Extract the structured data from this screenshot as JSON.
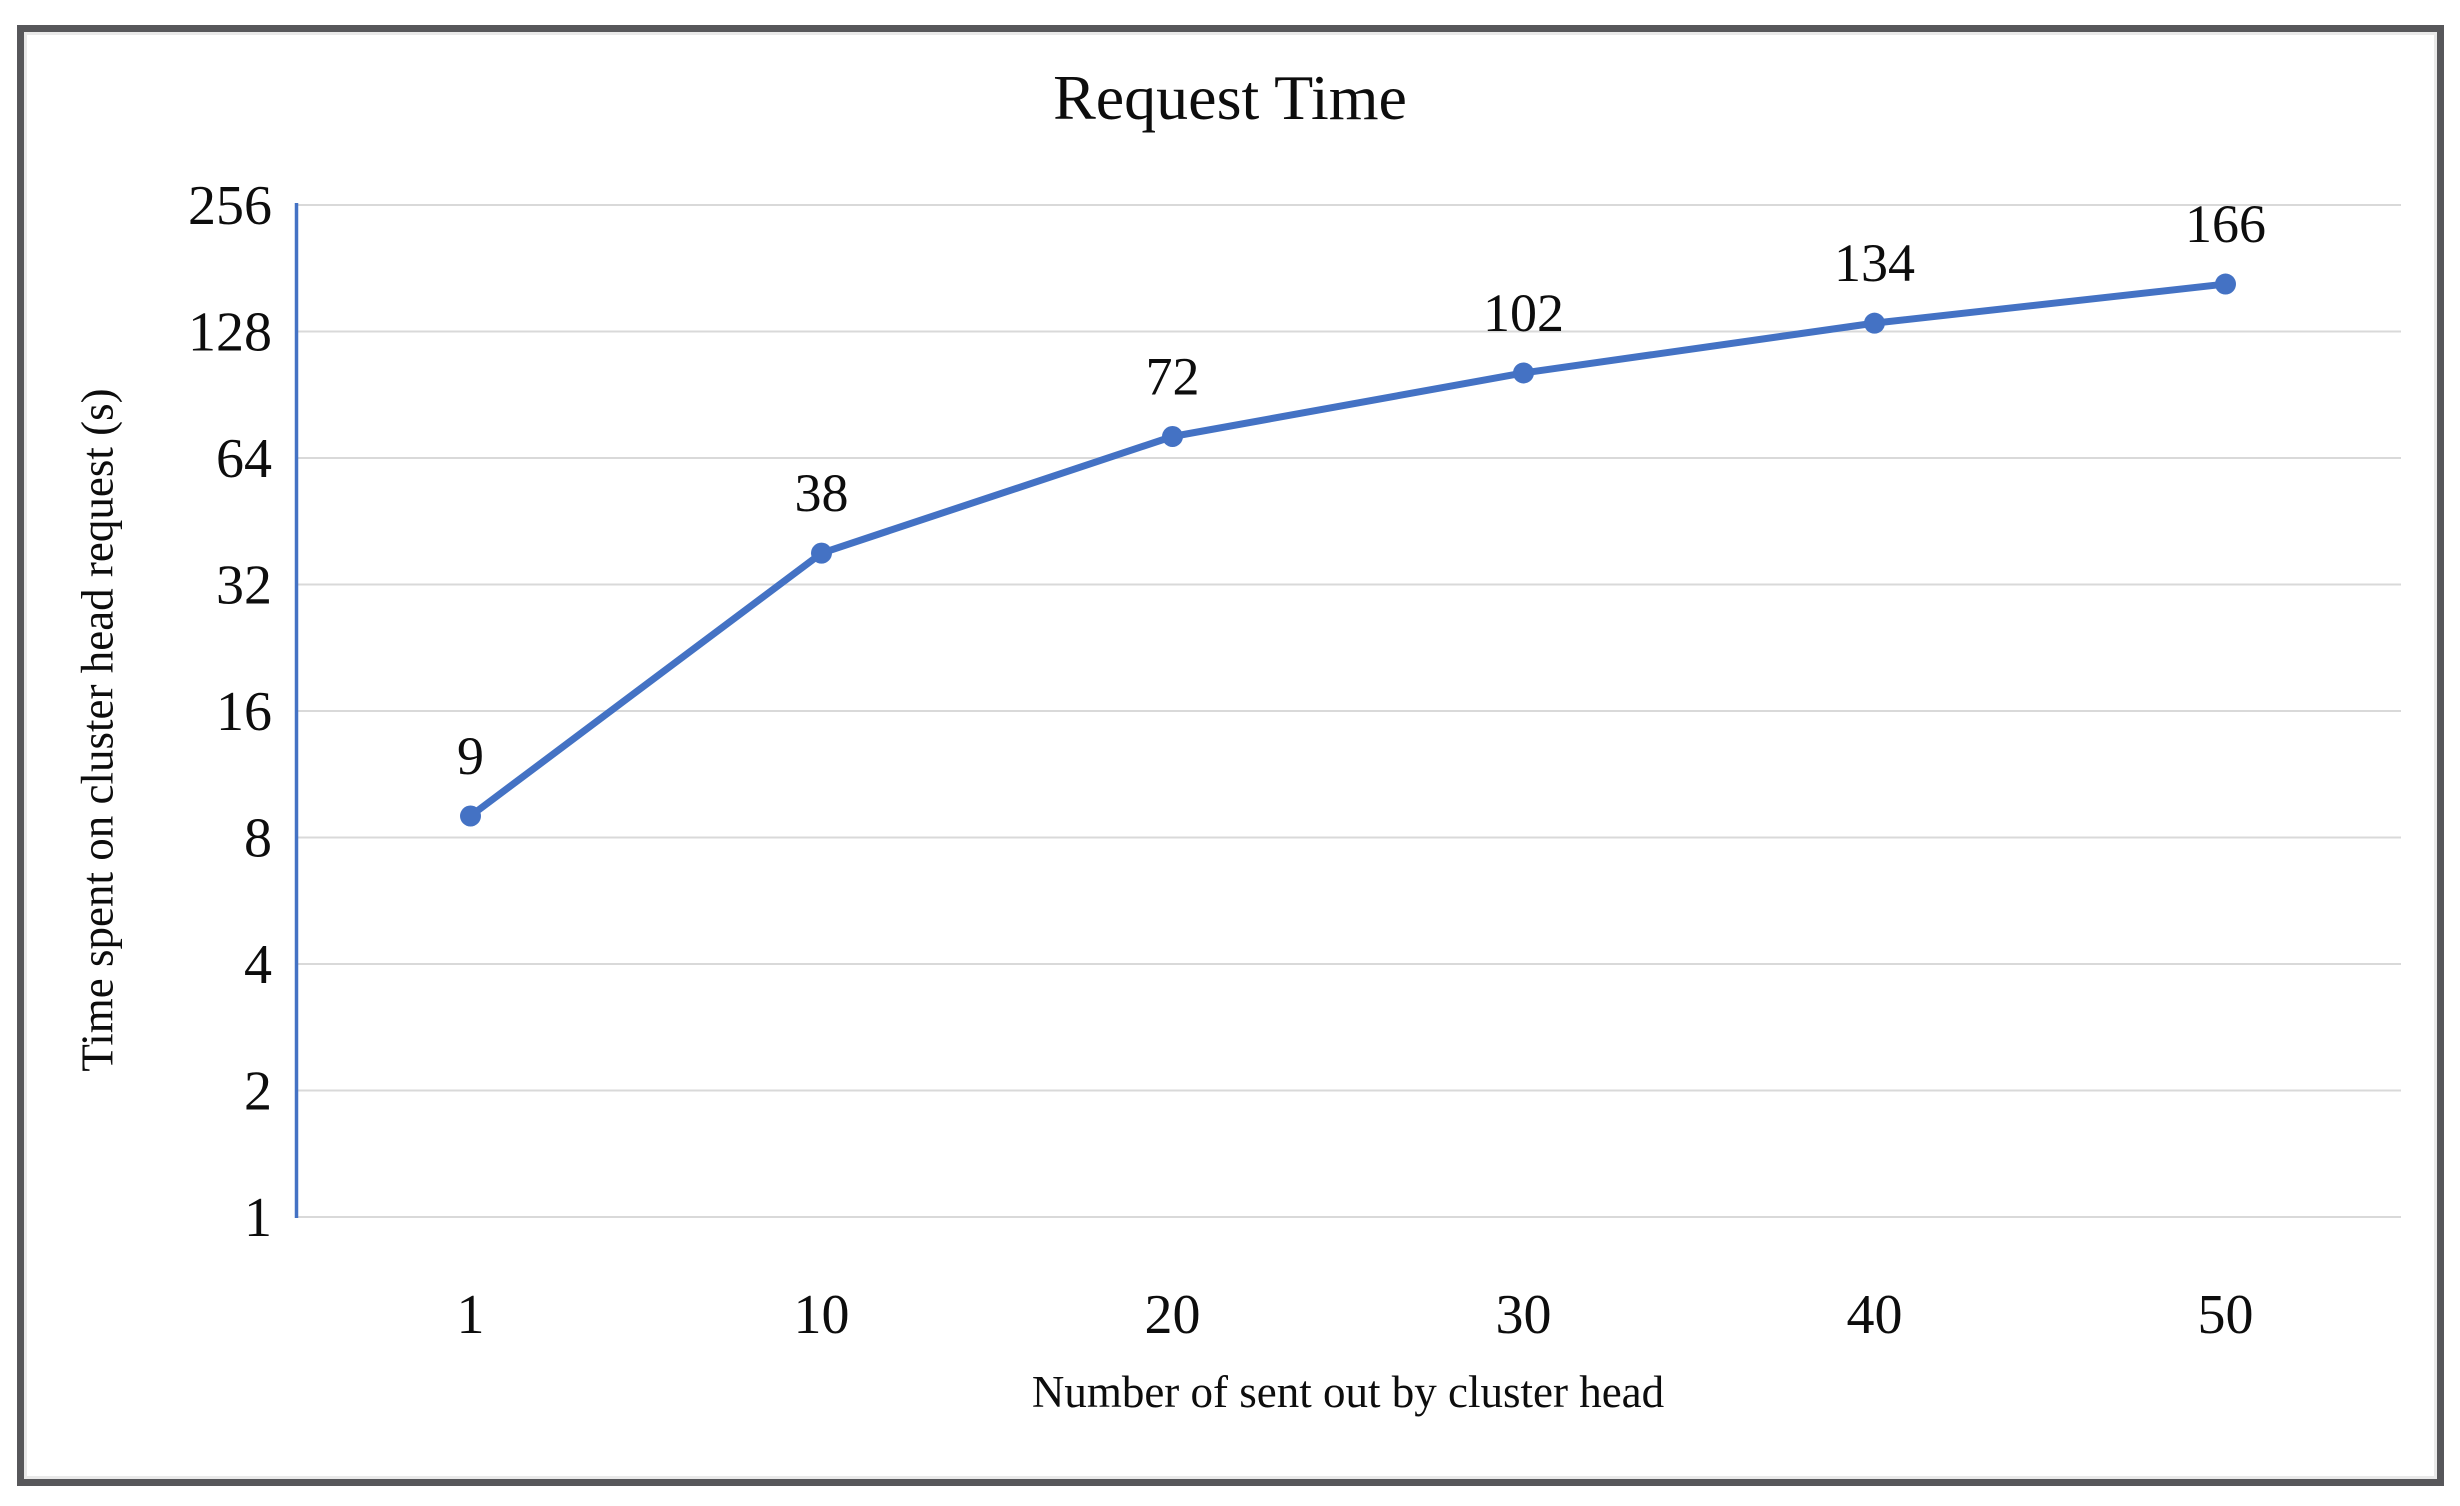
{
  "chart_data": {
    "type": "line",
    "title": "Request Time",
    "xlabel": "Number of sent out by cluster head",
    "ylabel": "Time spent on cluster head request (s)",
    "categories": [
      "1",
      "10",
      "20",
      "30",
      "40",
      "50"
    ],
    "series": [
      {
        "values": [
          9,
          38,
          72,
          102,
          134,
          166
        ]
      }
    ],
    "data_labels": [
      "9",
      "38",
      "72",
      "102",
      "134",
      "166"
    ],
    "y_axis": {
      "scale": "log2",
      "min": 1,
      "max": 256,
      "ticks": [
        256,
        128,
        64,
        32,
        16,
        8,
        4,
        2,
        1
      ]
    },
    "x_axis": {
      "type": "category"
    },
    "legend": "none",
    "grid": "horizontal",
    "colors": {
      "line": "#4472C4",
      "marker": "#4472C4",
      "axis_line": "#4472C4",
      "gridline": "#D9D9D9",
      "text": "#0D0D0D",
      "frame_border": "#57575A"
    }
  }
}
